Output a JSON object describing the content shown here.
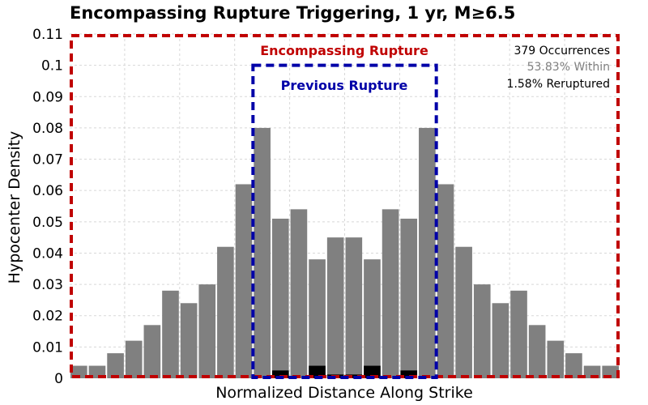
{
  "chart_data": {
    "type": "bar",
    "title": "Encompassing Rupture Triggering, 1 yr, M≥6.5",
    "xlabel": "Normalized Distance Along Strike",
    "ylabel": "Hypocenter Density",
    "ylim": [
      0,
      0.11
    ],
    "yticks": [
      "0",
      "0.01",
      "0.02",
      "0.03",
      "0.04",
      "0.05",
      "0.06",
      "0.07",
      "0.08",
      "0.09",
      "0.1",
      "0.11"
    ],
    "grid": true,
    "series": [
      {
        "name": "Within",
        "color": "#808080",
        "values": [
          0.004,
          0.004,
          0.008,
          0.012,
          0.017,
          0.028,
          0.024,
          0.03,
          0.042,
          0.062,
          0.08,
          0.051,
          0.054,
          0.038,
          0.045,
          0.045,
          0.038,
          0.054,
          0.051,
          0.08,
          0.062,
          0.042,
          0.03,
          0.024,
          0.028,
          0.017,
          0.012,
          0.008,
          0.004,
          0.004
        ]
      },
      {
        "name": "Reruptured",
        "color": "#000000",
        "values": [
          0,
          0,
          0,
          0,
          0,
          0,
          0,
          0,
          0,
          0,
          0,
          0.0025,
          0,
          0.004,
          0.0012,
          0.0012,
          0.004,
          0,
          0.0025,
          0,
          0,
          0,
          0,
          0,
          0,
          0,
          0,
          0,
          0,
          0
        ]
      }
    ],
    "annotations": {
      "encompassing_label": "Encompassing Rupture",
      "encompassing_color": "#c00000",
      "previous_label": "Previous Rupture",
      "previous_color": "#0000a8",
      "previous_range_bins": [
        10,
        20
      ],
      "previous_top": 0.1
    },
    "stats": {
      "occurrences": "379 Occurrences",
      "within": "53.83% Within",
      "reruptured": "1.58% Reruptured"
    }
  }
}
